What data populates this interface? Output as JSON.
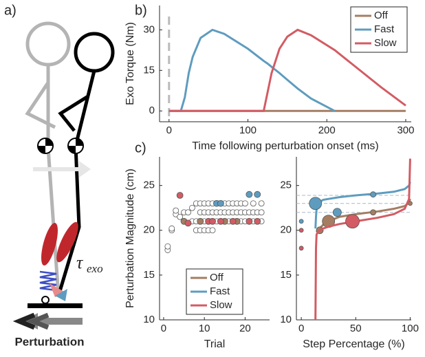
{
  "schematic": {
    "panel_label": "a)",
    "tau": "τ",
    "tau_subscript": "exo",
    "label": "Perturbation"
  },
  "chart_data": [
    {
      "type": "line",
      "panel_label": "b)",
      "x_label": "Time following perturbation onset (ms)",
      "y_label": "Exo Torque (Nm)",
      "xlim": [
        -12,
        307
      ],
      "ylim": [
        -4,
        39
      ],
      "xticks": [
        0,
        100,
        200,
        300
      ],
      "yticks": [
        0,
        15,
        30
      ],
      "vline": 0,
      "legend": "upper right",
      "x": [
        0,
        15,
        20,
        25,
        30,
        40,
        55,
        70,
        100,
        120,
        125,
        130,
        140,
        150,
        163,
        180,
        210,
        240,
        270,
        300
      ],
      "series": [
        {
          "name": "Off",
          "color": "#a57d62",
          "values": [
            0,
            0,
            0,
            0,
            0,
            0,
            0,
            0,
            0,
            0,
            0,
            0,
            0,
            0,
            0,
            0,
            0,
            0,
            0,
            0
          ]
        },
        {
          "name": "Fast",
          "color": "#5e9cbf",
          "values": [
            0,
            0,
            5,
            14,
            20,
            27,
            30,
            28.5,
            23,
            18.5,
            17.5,
            16.3,
            14,
            11.5,
            8.3,
            4.6,
            0,
            null,
            null,
            null
          ]
        },
        {
          "name": "Slow",
          "color": "#d35b63",
          "values": [
            0,
            0,
            0,
            0,
            0,
            0,
            0,
            0,
            0,
            0,
            7,
            14,
            23,
            27.5,
            30,
            28,
            22.5,
            15.5,
            8.5,
            2
          ]
        }
      ]
    },
    {
      "type": "scatter",
      "panel_label": "c)",
      "x_label": "Trial",
      "y_label": "Perturbation Magnitude (cm)",
      "xlim": [
        -1,
        26
      ],
      "ylim": [
        10,
        28.2
      ],
      "xticks": [
        0,
        10,
        20
      ],
      "yticks": [
        10,
        15,
        20,
        25
      ],
      "legend": "lower center",
      "unlabeled_points": {
        "color": "#ffffff",
        "x": [
          1,
          1,
          2,
          2,
          3,
          3,
          4,
          5,
          6,
          7,
          8,
          9,
          10,
          11,
          12,
          15,
          16,
          17,
          18,
          19,
          20,
          22,
          24,
          9,
          10,
          11,
          12,
          13,
          14,
          15,
          16,
          17,
          18,
          19,
          20,
          21,
          22,
          23,
          24,
          7,
          8,
          10,
          13,
          16,
          19,
          20,
          22,
          24,
          8,
          9,
          10,
          11,
          12
        ],
        "values": [
          17.8,
          18.2,
          20,
          20.2,
          21.8,
          22.2,
          21.5,
          22,
          22,
          22.5,
          23,
          23,
          23,
          23,
          23,
          23,
          23,
          23,
          23,
          23,
          23,
          23,
          23,
          22,
          22,
          22,
          22,
          22,
          22,
          22,
          22,
          22,
          22,
          22,
          22,
          22,
          22,
          22,
          22,
          21,
          21,
          21,
          21,
          21,
          21,
          21,
          21,
          21,
          20,
          20,
          20,
          20,
          20
        ]
      },
      "series": [
        {
          "name": "Off",
          "color": "#a57d62",
          "x": [
            5,
            9,
            15,
            18
          ],
          "values": [
            21,
            21,
            21,
            21
          ]
        },
        {
          "name": "Fast",
          "color": "#5e9cbf",
          "x": [
            13,
            14,
            21,
            23
          ],
          "values": [
            23,
            23,
            24,
            24
          ]
        },
        {
          "name": "Slow",
          "color": "#d35b63",
          "x": [
            4,
            6,
            11,
            12,
            14,
            17,
            21,
            23
          ],
          "values": [
            23.9,
            20.8,
            21,
            21,
            21,
            21,
            21,
            21
          ]
        }
      ]
    },
    {
      "type": "line",
      "x_label": "Step Percentage (%)",
      "xlim": [
        -4.5,
        101
      ],
      "ylim": [
        10,
        28.2
      ],
      "xticks": [
        0,
        50,
        100
      ],
      "yticks": [
        10,
        15,
        20,
        25
      ],
      "reference_lines": [
        23.9,
        23,
        22
      ],
      "x": [
        13,
        13.5,
        14,
        15,
        20,
        25,
        35,
        50,
        70,
        85,
        95,
        99,
        100
      ],
      "series": [
        {
          "name": "Off",
          "color": "#a57d62",
          "values": [
            null,
            null,
            19.8,
            20,
            20.6,
            21,
            21.5,
            21.8,
            22.1,
            22.4,
            22.7,
            23.1,
            23.5
          ],
          "points": {
            "x": [
              17,
              25,
              66,
              100
            ],
            "values": [
              20,
              21,
              22,
              23
            ],
            "sizes": [
              5,
              9,
              4,
              3
            ]
          }
        },
        {
          "name": "Fast",
          "color": "#5e9cbf",
          "values": [
            20.2,
            21.5,
            22.3,
            23,
            23.4,
            23.5,
            23.7,
            23.9,
            24.1,
            24.3,
            24.6,
            25,
            25.4
          ],
          "points": {
            "x": [
              13,
              33,
              66,
              0
            ],
            "values": [
              23,
              22,
              24,
              21
            ],
            "sizes": [
              9,
              6,
              4,
              3
            ]
          }
        },
        {
          "name": "Slow",
          "color": "#d35b63",
          "values": [
            10,
            18,
            19.5,
            19.8,
            20.2,
            20.4,
            20.7,
            21,
            21.4,
            21.8,
            22.4,
            23.5,
            28
          ],
          "points": {
            "x": [
              47,
              0,
              0
            ],
            "values": [
              21,
              20,
              18
            ],
            "sizes": [
              10,
              3,
              3
            ]
          }
        }
      ]
    }
  ]
}
